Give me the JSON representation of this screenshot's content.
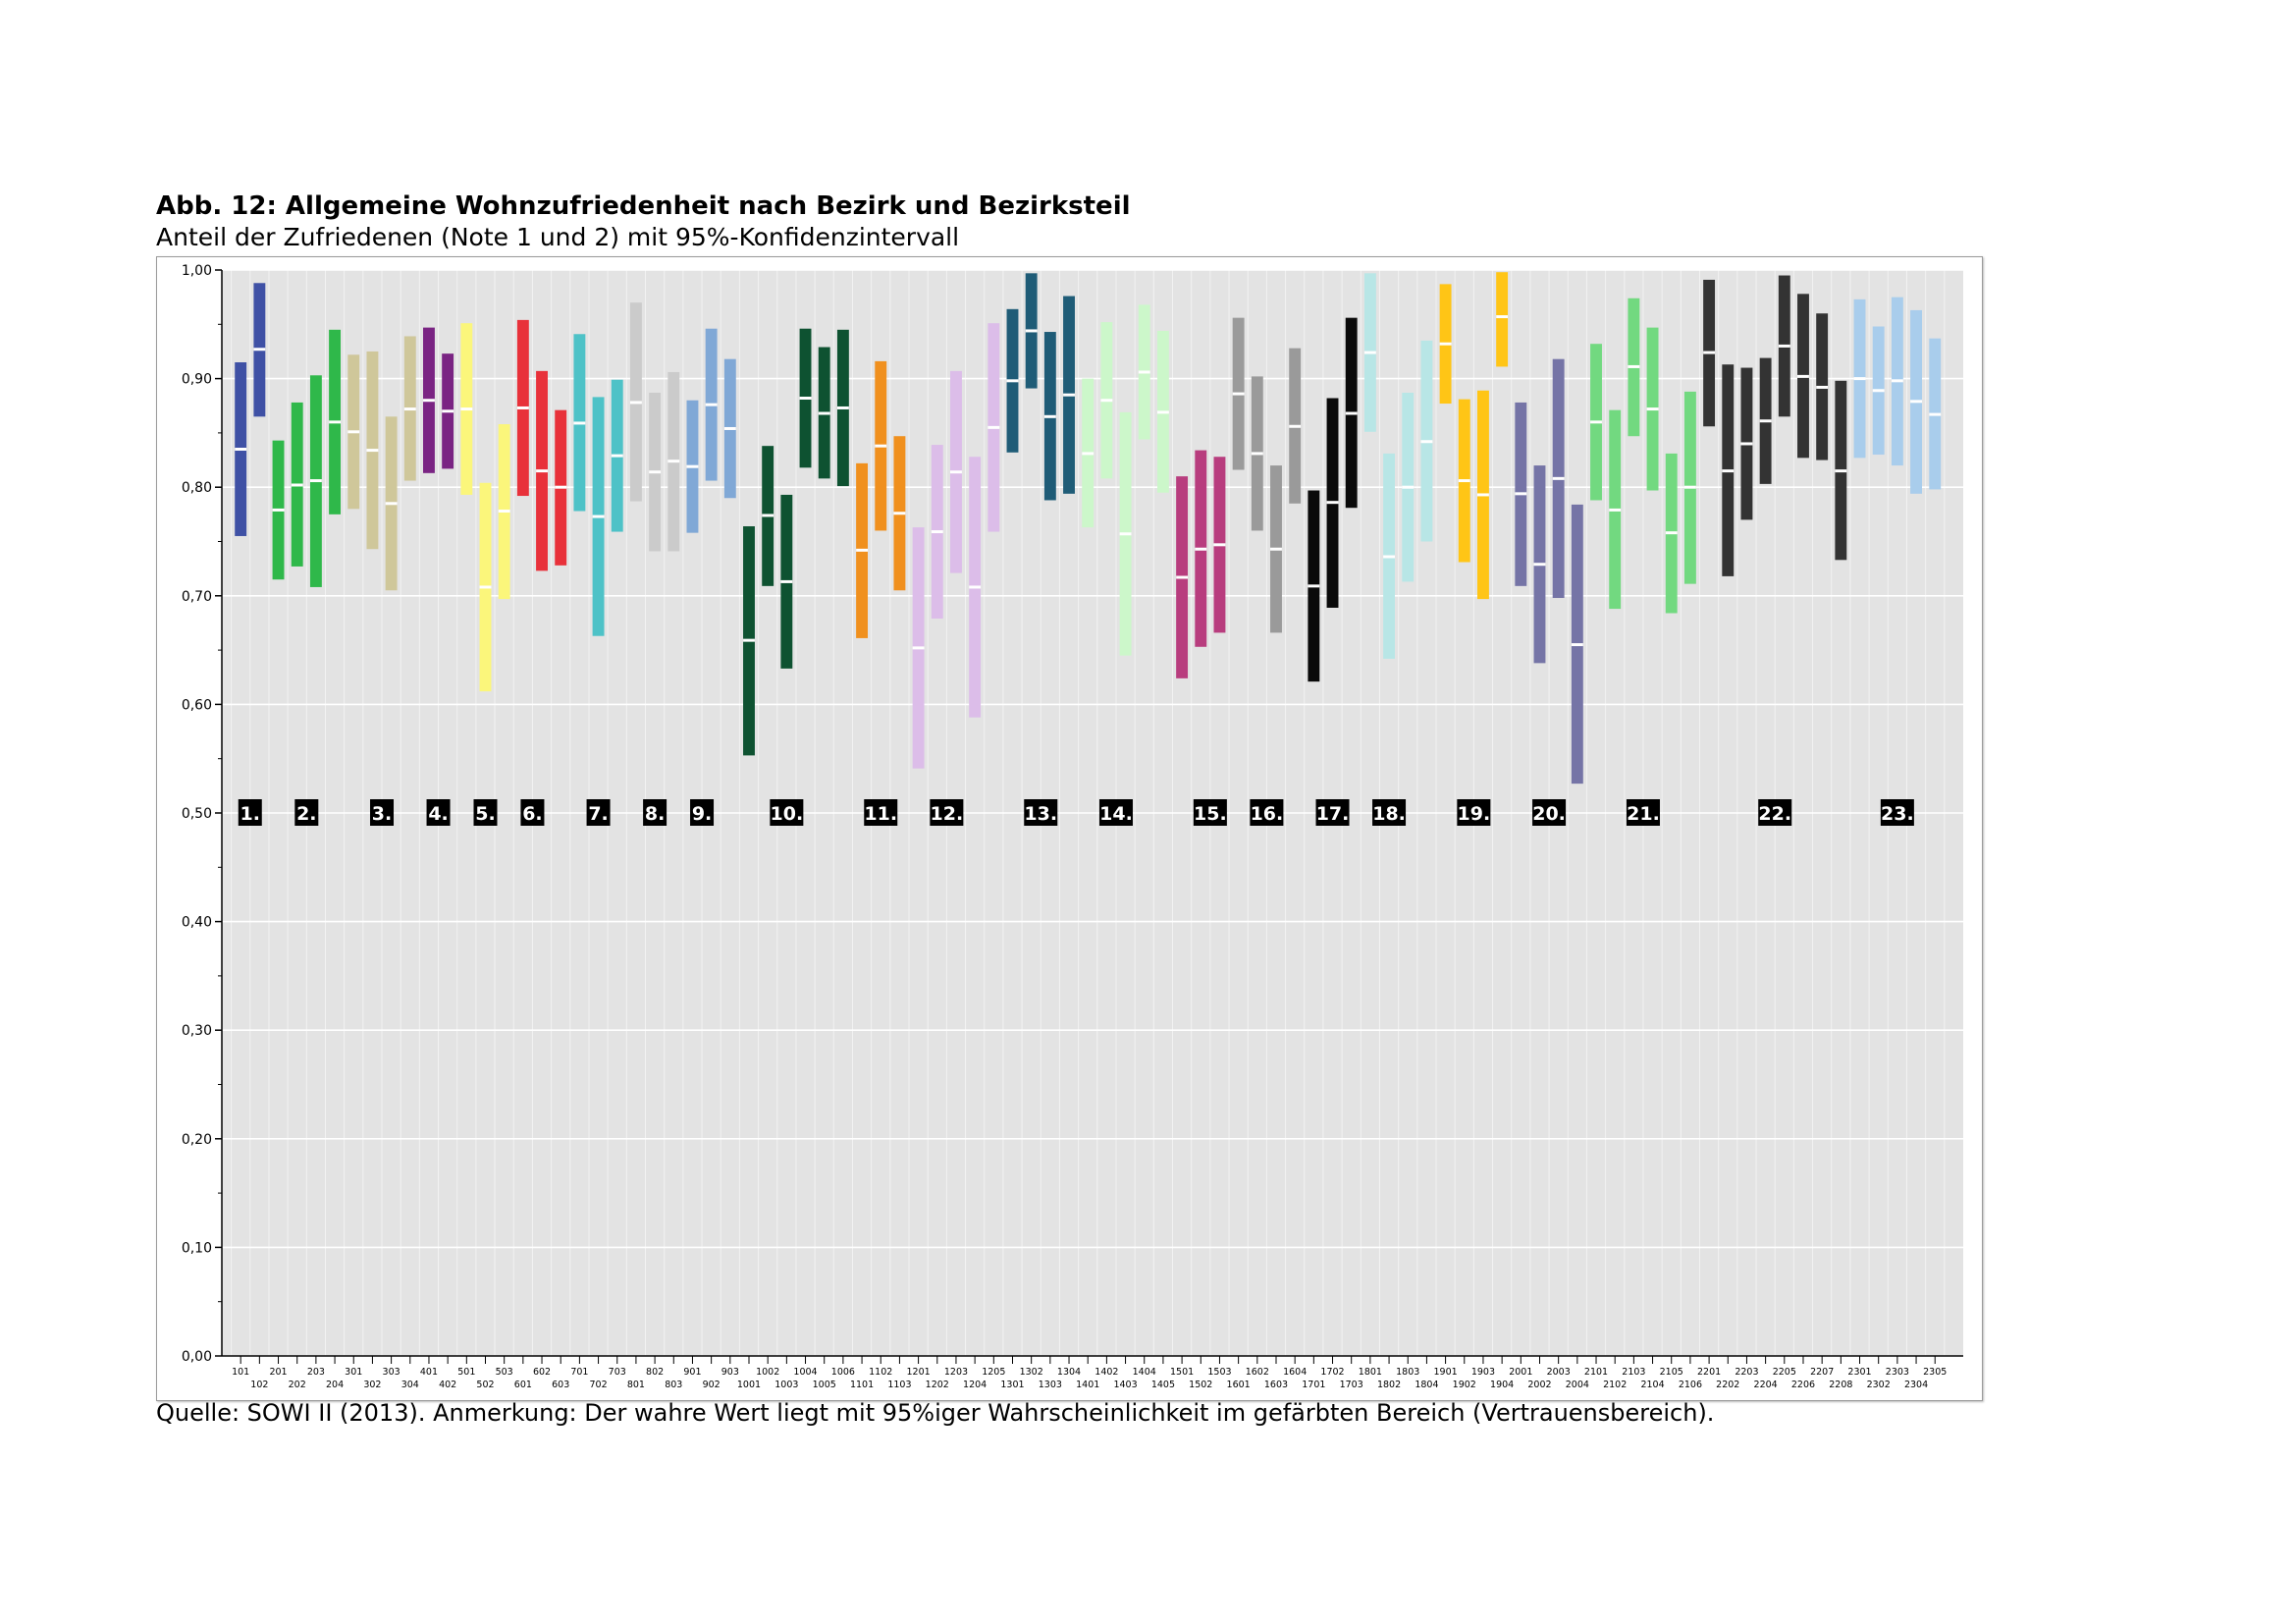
{
  "title": "Abb. 12: Allgemeine Wohnzufriedenheit nach Bezirk und Bezirksteil",
  "subtitle": "Anteil der Zufriedenen (Note 1 und 2) mit 95%-Konfidenzintervall",
  "source": "Quelle: SOWI II (2013). Anmerkung: Der wahre Wert liegt mit 95%iger Wahrscheinlichkeit im gefärbten Bereich (Vertrauensbereich).",
  "chart_data": {
    "type": "bar",
    "subtype": "confidence-interval (floating bars with point estimate)",
    "ylim": [
      0,
      1
    ],
    "yticks": [
      "0,00",
      "0,10",
      "0,20",
      "0,30",
      "0,40",
      "0,50",
      "0,60",
      "0,70",
      "0,80",
      "0,90",
      "1,00"
    ],
    "grid": true,
    "categories": [
      "101",
      "102",
      "201",
      "202",
      "203",
      "204",
      "301",
      "302",
      "303",
      "304",
      "401",
      "402",
      "501",
      "502",
      "503",
      "601",
      "602",
      "603",
      "701",
      "702",
      "703",
      "801",
      "802",
      "803",
      "901",
      "902",
      "903",
      "1001",
      "1002",
      "1003",
      "1004",
      "1005",
      "1006",
      "1101",
      "1102",
      "1103",
      "1201",
      "1202",
      "1203",
      "1204",
      "1205",
      "1301",
      "1302",
      "1303",
      "1304",
      "1401",
      "1402",
      "1403",
      "1404",
      "1405",
      "1501",
      "1502",
      "1503",
      "1601",
      "1602",
      "1603",
      "1604",
      "1701",
      "1702",
      "1703",
      "1801",
      "1802",
      "1803",
      "1804",
      "1901",
      "1902",
      "1903",
      "1904",
      "2001",
      "2002",
      "2003",
      "2004",
      "2101",
      "2102",
      "2103",
      "2104",
      "2105",
      "2106",
      "2201",
      "2202",
      "2203",
      "2204",
      "2205",
      "2206",
      "2207",
      "2208",
      "2301",
      "2302",
      "2303",
      "2304",
      "2305"
    ],
    "district_colors": {
      "1": "#3f51a5",
      "2": "#2fb84a",
      "3": "#cfc79a",
      "4": "#7a2483",
      "5": "#fbf67b",
      "6": "#e8313a",
      "7": "#4ec2c7",
      "8": "#cbcbcb",
      "9": "#80a8d6",
      "10": "#0e5231",
      "11": "#f0901e",
      "12": "#dcbde9",
      "13": "#1f5c77",
      "14": "#ccf7ca",
      "15": "#b83d7e",
      "16": "#9a9a9a",
      "17": "#0a0a0a",
      "18": "#b8e6e6",
      "19": "#ffc516",
      "20": "#7574a6",
      "21": "#72d980",
      "22": "#333333",
      "23": "#a9cdec"
    },
    "district_labels": [
      {
        "text": "1.",
        "cat": "101",
        "offset": 0.5
      },
      {
        "text": "2.",
        "cat": "202",
        "offset": 0.5
      },
      {
        "text": "3.",
        "cat": "302",
        "offset": 0.5
      },
      {
        "text": "4.",
        "cat": "401",
        "offset": 0.5
      },
      {
        "text": "5.",
        "cat": "502",
        "offset": 0
      },
      {
        "text": "6.",
        "cat": "601",
        "offset": 0.5
      },
      {
        "text": "7.",
        "cat": "702",
        "offset": 0
      },
      {
        "text": "8.",
        "cat": "802",
        "offset": 0
      },
      {
        "text": "9.",
        "cat": "901",
        "offset": 0.5
      },
      {
        "text": "10.",
        "cat": "1003",
        "offset": 0
      },
      {
        "text": "11.",
        "cat": "1102",
        "offset": 0
      },
      {
        "text": "12.",
        "cat": "1203",
        "offset": -0.5
      },
      {
        "text": "13.",
        "cat": "1303",
        "offset": -0.5
      },
      {
        "text": "14.",
        "cat": "1403",
        "offset": -0.5
      },
      {
        "text": "15.",
        "cat": "1502",
        "offset": 0.5
      },
      {
        "text": "16.",
        "cat": "1602",
        "offset": 0.5
      },
      {
        "text": "17.",
        "cat": "1702",
        "offset": 0
      },
      {
        "text": "18.",
        "cat": "1802",
        "offset": 0
      },
      {
        "text": "19.",
        "cat": "1902",
        "offset": 0.5
      },
      {
        "text": "20.",
        "cat": "2002",
        "offset": 0.5
      },
      {
        "text": "21.",
        "cat": "2103",
        "offset": 0.5
      },
      {
        "text": "22.",
        "cat": "2204",
        "offset": 0.5
      },
      {
        "text": "23.",
        "cat": "2303",
        "offset": 0
      }
    ],
    "series": [
      {
        "district": "1",
        "points": [
          {
            "cat": "101",
            "low": 0.755,
            "mid": 0.835,
            "high": 0.915
          },
          {
            "cat": "102",
            "low": 0.865,
            "mid": 0.927,
            "high": 0.988
          }
        ]
      },
      {
        "district": "2",
        "points": [
          {
            "cat": "201",
            "low": 0.715,
            "mid": 0.779,
            "high": 0.843
          },
          {
            "cat": "202",
            "low": 0.727,
            "mid": 0.802,
            "high": 0.878
          },
          {
            "cat": "203",
            "low": 0.708,
            "mid": 0.806,
            "high": 0.903
          },
          {
            "cat": "204",
            "low": 0.775,
            "mid": 0.86,
            "high": 0.945
          }
        ]
      },
      {
        "district": "3",
        "points": [
          {
            "cat": "301",
            "low": 0.78,
            "mid": 0.851,
            "high": 0.922
          },
          {
            "cat": "302",
            "low": 0.743,
            "mid": 0.834,
            "high": 0.925
          },
          {
            "cat": "303",
            "low": 0.705,
            "mid": 0.785,
            "high": 0.865
          },
          {
            "cat": "304",
            "low": 0.806,
            "mid": 0.872,
            "high": 0.939
          }
        ]
      },
      {
        "district": "4",
        "points": [
          {
            "cat": "401",
            "low": 0.813,
            "mid": 0.88,
            "high": 0.947
          },
          {
            "cat": "402",
            "low": 0.817,
            "mid": 0.87,
            "high": 0.923
          }
        ]
      },
      {
        "district": "5",
        "points": [
          {
            "cat": "501",
            "low": 0.793,
            "mid": 0.872,
            "high": 0.951
          },
          {
            "cat": "502",
            "low": 0.612,
            "mid": 0.708,
            "high": 0.804
          },
          {
            "cat": "503",
            "low": 0.697,
            "mid": 0.778,
            "high": 0.858
          }
        ]
      },
      {
        "district": "6",
        "points": [
          {
            "cat": "601",
            "low": 0.792,
            "mid": 0.873,
            "high": 0.954
          },
          {
            "cat": "602",
            "low": 0.723,
            "mid": 0.815,
            "high": 0.907
          },
          {
            "cat": "603",
            "low": 0.728,
            "mid": 0.8,
            "high": 0.871
          }
        ]
      },
      {
        "district": "7",
        "points": [
          {
            "cat": "701",
            "low": 0.778,
            "mid": 0.859,
            "high": 0.941
          },
          {
            "cat": "702",
            "low": 0.663,
            "mid": 0.773,
            "high": 0.883
          },
          {
            "cat": "703",
            "low": 0.759,
            "mid": 0.829,
            "high": 0.899
          }
        ]
      },
      {
        "district": "8",
        "points": [
          {
            "cat": "801",
            "low": 0.787,
            "mid": 0.878,
            "high": 0.97
          },
          {
            "cat": "802",
            "low": 0.741,
            "mid": 0.814,
            "high": 0.887
          },
          {
            "cat": "803",
            "low": 0.741,
            "mid": 0.824,
            "high": 0.906
          }
        ]
      },
      {
        "district": "9",
        "points": [
          {
            "cat": "901",
            "low": 0.758,
            "mid": 0.819,
            "high": 0.88
          },
          {
            "cat": "902",
            "low": 0.806,
            "mid": 0.876,
            "high": 0.946
          },
          {
            "cat": "903",
            "low": 0.79,
            "mid": 0.854,
            "high": 0.918
          }
        ]
      },
      {
        "district": "10",
        "points": [
          {
            "cat": "1001",
            "low": 0.553,
            "mid": 0.659,
            "high": 0.764
          },
          {
            "cat": "1002",
            "low": 0.709,
            "mid": 0.774,
            "high": 0.838
          },
          {
            "cat": "1003",
            "low": 0.633,
            "mid": 0.713,
            "high": 0.793
          },
          {
            "cat": "1004",
            "low": 0.818,
            "mid": 0.882,
            "high": 0.946
          },
          {
            "cat": "1005",
            "low": 0.808,
            "mid": 0.868,
            "high": 0.929
          },
          {
            "cat": "1006",
            "low": 0.801,
            "mid": 0.873,
            "high": 0.945
          }
        ]
      },
      {
        "district": "11",
        "points": [
          {
            "cat": "1101",
            "low": 0.661,
            "mid": 0.742,
            "high": 0.822
          },
          {
            "cat": "1102",
            "low": 0.76,
            "mid": 0.838,
            "high": 0.916
          },
          {
            "cat": "1103",
            "low": 0.705,
            "mid": 0.776,
            "high": 0.847
          }
        ]
      },
      {
        "district": "12",
        "points": [
          {
            "cat": "1201",
            "low": 0.541,
            "mid": 0.652,
            "high": 0.763
          },
          {
            "cat": "1202",
            "low": 0.679,
            "mid": 0.759,
            "high": 0.839
          },
          {
            "cat": "1203",
            "low": 0.721,
            "mid": 0.814,
            "high": 0.907
          },
          {
            "cat": "1204",
            "low": 0.588,
            "mid": 0.708,
            "high": 0.828
          },
          {
            "cat": "1205",
            "low": 0.759,
            "mid": 0.855,
            "high": 0.951
          }
        ]
      },
      {
        "district": "13",
        "points": [
          {
            "cat": "1301",
            "low": 0.832,
            "mid": 0.898,
            "high": 0.964
          },
          {
            "cat": "1302",
            "low": 0.891,
            "mid": 0.944,
            "high": 0.997
          },
          {
            "cat": "1303",
            "low": 0.788,
            "mid": 0.865,
            "high": 0.943
          },
          {
            "cat": "1304",
            "low": 0.794,
            "mid": 0.885,
            "high": 0.976
          }
        ]
      },
      {
        "district": "14",
        "points": [
          {
            "cat": "1401",
            "low": 0.763,
            "mid": 0.831,
            "high": 0.9
          },
          {
            "cat": "1402",
            "low": 0.808,
            "mid": 0.88,
            "high": 0.952
          },
          {
            "cat": "1403",
            "low": 0.645,
            "mid": 0.757,
            "high": 0.869
          },
          {
            "cat": "1404",
            "low": 0.844,
            "mid": 0.906,
            "high": 0.968
          },
          {
            "cat": "1405",
            "low": 0.795,
            "mid": 0.869,
            "high": 0.944
          }
        ]
      },
      {
        "district": "15",
        "points": [
          {
            "cat": "1501",
            "low": 0.624,
            "mid": 0.717,
            "high": 0.81
          },
          {
            "cat": "1502",
            "low": 0.653,
            "mid": 0.743,
            "high": 0.834
          },
          {
            "cat": "1503",
            "low": 0.666,
            "mid": 0.747,
            "high": 0.828
          }
        ]
      },
      {
        "district": "16",
        "points": [
          {
            "cat": "1601",
            "low": 0.816,
            "mid": 0.886,
            "high": 0.956
          },
          {
            "cat": "1602",
            "low": 0.76,
            "mid": 0.831,
            "high": 0.902
          },
          {
            "cat": "1603",
            "low": 0.666,
            "mid": 0.743,
            "high": 0.82
          },
          {
            "cat": "1604",
            "low": 0.785,
            "mid": 0.856,
            "high": 0.928
          }
        ]
      },
      {
        "district": "17",
        "points": [
          {
            "cat": "1701",
            "low": 0.621,
            "mid": 0.709,
            "high": 0.797
          },
          {
            "cat": "1702",
            "low": 0.689,
            "mid": 0.786,
            "high": 0.882
          },
          {
            "cat": "1703",
            "low": 0.781,
            "mid": 0.868,
            "high": 0.956
          }
        ]
      },
      {
        "district": "18",
        "points": [
          {
            "cat": "1801",
            "low": 0.851,
            "mid": 0.924,
            "high": 0.997
          },
          {
            "cat": "1802",
            "low": 0.642,
            "mid": 0.736,
            "high": 0.831
          },
          {
            "cat": "1803",
            "low": 0.713,
            "mid": 0.8,
            "high": 0.887
          },
          {
            "cat": "1804",
            "low": 0.75,
            "mid": 0.842,
            "high": 0.935
          }
        ]
      },
      {
        "district": "19",
        "points": [
          {
            "cat": "1901",
            "low": 0.877,
            "mid": 0.932,
            "high": 0.987
          },
          {
            "cat": "1902",
            "low": 0.731,
            "mid": 0.806,
            "high": 0.881
          },
          {
            "cat": "1903",
            "low": 0.697,
            "mid": 0.793,
            "high": 0.889
          },
          {
            "cat": "1904",
            "low": 0.911,
            "mid": 0.957,
            "high": 0.998
          }
        ]
      },
      {
        "district": "20",
        "points": [
          {
            "cat": "2001",
            "low": 0.709,
            "mid": 0.794,
            "high": 0.878
          },
          {
            "cat": "2002",
            "low": 0.638,
            "mid": 0.729,
            "high": 0.82
          },
          {
            "cat": "2003",
            "low": 0.698,
            "mid": 0.808,
            "high": 0.918
          },
          {
            "cat": "2004",
            "low": 0.527,
            "mid": 0.655,
            "high": 0.784
          }
        ]
      },
      {
        "district": "21",
        "points": [
          {
            "cat": "2101",
            "low": 0.788,
            "mid": 0.86,
            "high": 0.932
          },
          {
            "cat": "2102",
            "low": 0.688,
            "mid": 0.779,
            "high": 0.871
          },
          {
            "cat": "2103",
            "low": 0.847,
            "mid": 0.911,
            "high": 0.974
          },
          {
            "cat": "2104",
            "low": 0.797,
            "mid": 0.872,
            "high": 0.947
          },
          {
            "cat": "2105",
            "low": 0.684,
            "mid": 0.758,
            "high": 0.831
          },
          {
            "cat": "2106",
            "low": 0.711,
            "mid": 0.8,
            "high": 0.888
          }
        ]
      },
      {
        "district": "22",
        "points": [
          {
            "cat": "2201",
            "low": 0.856,
            "mid": 0.924,
            "high": 0.991
          },
          {
            "cat": "2202",
            "low": 0.718,
            "mid": 0.815,
            "high": 0.913
          },
          {
            "cat": "2203",
            "low": 0.77,
            "mid": 0.84,
            "high": 0.91
          },
          {
            "cat": "2204",
            "low": 0.803,
            "mid": 0.861,
            "high": 0.919
          },
          {
            "cat": "2205",
            "low": 0.865,
            "mid": 0.93,
            "high": 0.995
          },
          {
            "cat": "2206",
            "low": 0.827,
            "mid": 0.902,
            "high": 0.978
          },
          {
            "cat": "2207",
            "low": 0.825,
            "mid": 0.892,
            "high": 0.96
          },
          {
            "cat": "2208",
            "low": 0.733,
            "mid": 0.815,
            "high": 0.898
          }
        ]
      },
      {
        "district": "23",
        "points": [
          {
            "cat": "2301",
            "low": 0.827,
            "mid": 0.9,
            "high": 0.973
          },
          {
            "cat": "2302",
            "low": 0.83,
            "mid": 0.889,
            "high": 0.948
          },
          {
            "cat": "2303",
            "low": 0.82,
            "mid": 0.898,
            "high": 0.975
          },
          {
            "cat": "2304",
            "low": 0.794,
            "mid": 0.879,
            "high": 0.963
          },
          {
            "cat": "2305",
            "low": 0.798,
            "mid": 0.867,
            "high": 0.937
          }
        ]
      }
    ]
  }
}
